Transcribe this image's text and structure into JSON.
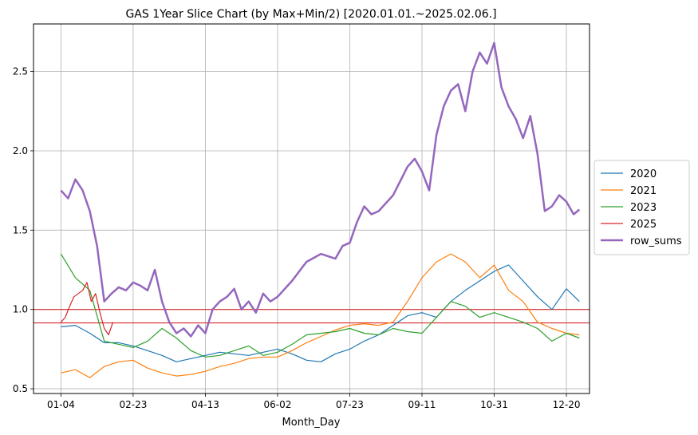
{
  "chart_data": {
    "type": "line",
    "title": "GAS 1Year Slice Chart (by Max+Min/2) [2020.01.01.~2025.02.06.]",
    "xlabel": "Month_Day",
    "ylabel": "",
    "x_ticks": [
      "01-04",
      "02-23",
      "04-13",
      "06-02",
      "07-23",
      "09-11",
      "10-31",
      "12-20"
    ],
    "x_tick_days": [
      0,
      50,
      100,
      150,
      200,
      250,
      300,
      350
    ],
    "x_range": [
      -19,
      366
    ],
    "y_ticks": [
      0.5,
      1.0,
      1.5,
      2.0,
      2.5
    ],
    "y_tick_labels": [
      "0.5",
      "1.0",
      "1.5",
      "2.0",
      "2.5"
    ],
    "ylim": [
      0.47,
      2.8
    ],
    "grid": true,
    "legend_position": "right",
    "reference_lines": [
      {
        "y": 1.0,
        "color": "#d62728"
      },
      {
        "y": 0.915,
        "color": "#d62728"
      }
    ],
    "series": [
      {
        "name": "2020",
        "color": "#1f77b4",
        "width": 1.2,
        "x": [
          0,
          10,
          20,
          30,
          40,
          50,
          60,
          70,
          80,
          90,
          100,
          110,
          120,
          130,
          140,
          150,
          160,
          170,
          180,
          190,
          200,
          210,
          220,
          230,
          240,
          250,
          260,
          270,
          280,
          290,
          300,
          310,
          320,
          330,
          340,
          350,
          359
        ],
        "y": [
          0.89,
          0.9,
          0.85,
          0.79,
          0.79,
          0.77,
          0.74,
          0.71,
          0.67,
          0.69,
          0.71,
          0.73,
          0.72,
          0.71,
          0.73,
          0.75,
          0.72,
          0.68,
          0.67,
          0.72,
          0.75,
          0.8,
          0.84,
          0.9,
          0.96,
          0.98,
          0.95,
          1.05,
          1.12,
          1.18,
          1.24,
          1.28,
          1.18,
          1.08,
          1.0,
          1.13,
          1.05
        ]
      },
      {
        "name": "2021",
        "color": "#ff7f0e",
        "width": 1.2,
        "x": [
          0,
          10,
          20,
          30,
          40,
          50,
          60,
          70,
          80,
          90,
          100,
          110,
          120,
          130,
          140,
          150,
          160,
          170,
          180,
          190,
          200,
          210,
          220,
          230,
          240,
          250,
          260,
          270,
          280,
          290,
          300,
          310,
          320,
          330,
          340,
          350,
          359
        ],
        "y": [
          0.6,
          0.62,
          0.57,
          0.64,
          0.67,
          0.68,
          0.63,
          0.6,
          0.58,
          0.59,
          0.61,
          0.64,
          0.66,
          0.69,
          0.7,
          0.7,
          0.74,
          0.79,
          0.83,
          0.87,
          0.9,
          0.91,
          0.9,
          0.92,
          1.05,
          1.2,
          1.3,
          1.35,
          1.3,
          1.2,
          1.28,
          1.12,
          1.05,
          0.92,
          0.88,
          0.85,
          0.84
        ]
      },
      {
        "name": "2023",
        "color": "#2ca02c",
        "width": 1.2,
        "x": [
          0,
          10,
          20,
          30,
          40,
          50,
          60,
          70,
          80,
          90,
          100,
          110,
          120,
          130,
          140,
          150,
          160,
          170,
          180,
          190,
          200,
          210,
          220,
          230,
          240,
          250,
          260,
          270,
          280,
          290,
          300,
          310,
          320,
          330,
          340,
          350,
          359
        ],
        "y": [
          1.35,
          1.2,
          1.12,
          0.8,
          0.78,
          0.76,
          0.8,
          0.88,
          0.82,
          0.74,
          0.7,
          0.71,
          0.74,
          0.77,
          0.71,
          0.73,
          0.78,
          0.84,
          0.85,
          0.86,
          0.88,
          0.85,
          0.84,
          0.88,
          0.86,
          0.85,
          0.95,
          1.05,
          1.02,
          0.95,
          0.98,
          0.95,
          0.92,
          0.88,
          0.8,
          0.85,
          0.82
        ]
      },
      {
        "name": "2025",
        "color": "#d62728",
        "width": 1.2,
        "x": [
          0,
          3,
          6,
          9,
          12,
          15,
          18,
          21,
          24,
          27,
          30,
          33,
          36
        ],
        "y": [
          0.92,
          0.95,
          1.02,
          1.08,
          1.1,
          1.12,
          1.17,
          1.05,
          1.1,
          0.98,
          0.88,
          0.84,
          0.92
        ]
      },
      {
        "name": "row_sums",
        "color": "#9467bd",
        "width": 2.5,
        "x": [
          0,
          5,
          10,
          15,
          20,
          25,
          30,
          35,
          40,
          45,
          50,
          55,
          60,
          65,
          70,
          75,
          80,
          85,
          90,
          95,
          100,
          105,
          110,
          115,
          120,
          125,
          130,
          135,
          140,
          145,
          150,
          160,
          170,
          180,
          190,
          195,
          200,
          205,
          210,
          215,
          220,
          230,
          240,
          245,
          250,
          255,
          260,
          265,
          270,
          275,
          280,
          285,
          290,
          295,
          300,
          305,
          310,
          315,
          320,
          325,
          330,
          335,
          340,
          345,
          350,
          355,
          359
        ],
        "y": [
          1.75,
          1.7,
          1.82,
          1.75,
          1.62,
          1.4,
          1.05,
          1.1,
          1.14,
          1.12,
          1.17,
          1.15,
          1.12,
          1.25,
          1.05,
          0.92,
          0.85,
          0.88,
          0.83,
          0.9,
          0.85,
          1.0,
          1.05,
          1.08,
          1.13,
          1.0,
          1.05,
          0.98,
          1.1,
          1.05,
          1.08,
          1.18,
          1.3,
          1.35,
          1.32,
          1.4,
          1.42,
          1.55,
          1.65,
          1.6,
          1.62,
          1.72,
          1.9,
          1.95,
          1.87,
          1.75,
          2.1,
          2.28,
          2.38,
          2.42,
          2.25,
          2.5,
          2.62,
          2.55,
          2.68,
          2.4,
          2.28,
          2.2,
          2.08,
          2.22,
          1.98,
          1.62,
          1.65,
          1.72,
          1.68,
          1.6,
          1.63
        ]
      }
    ]
  }
}
